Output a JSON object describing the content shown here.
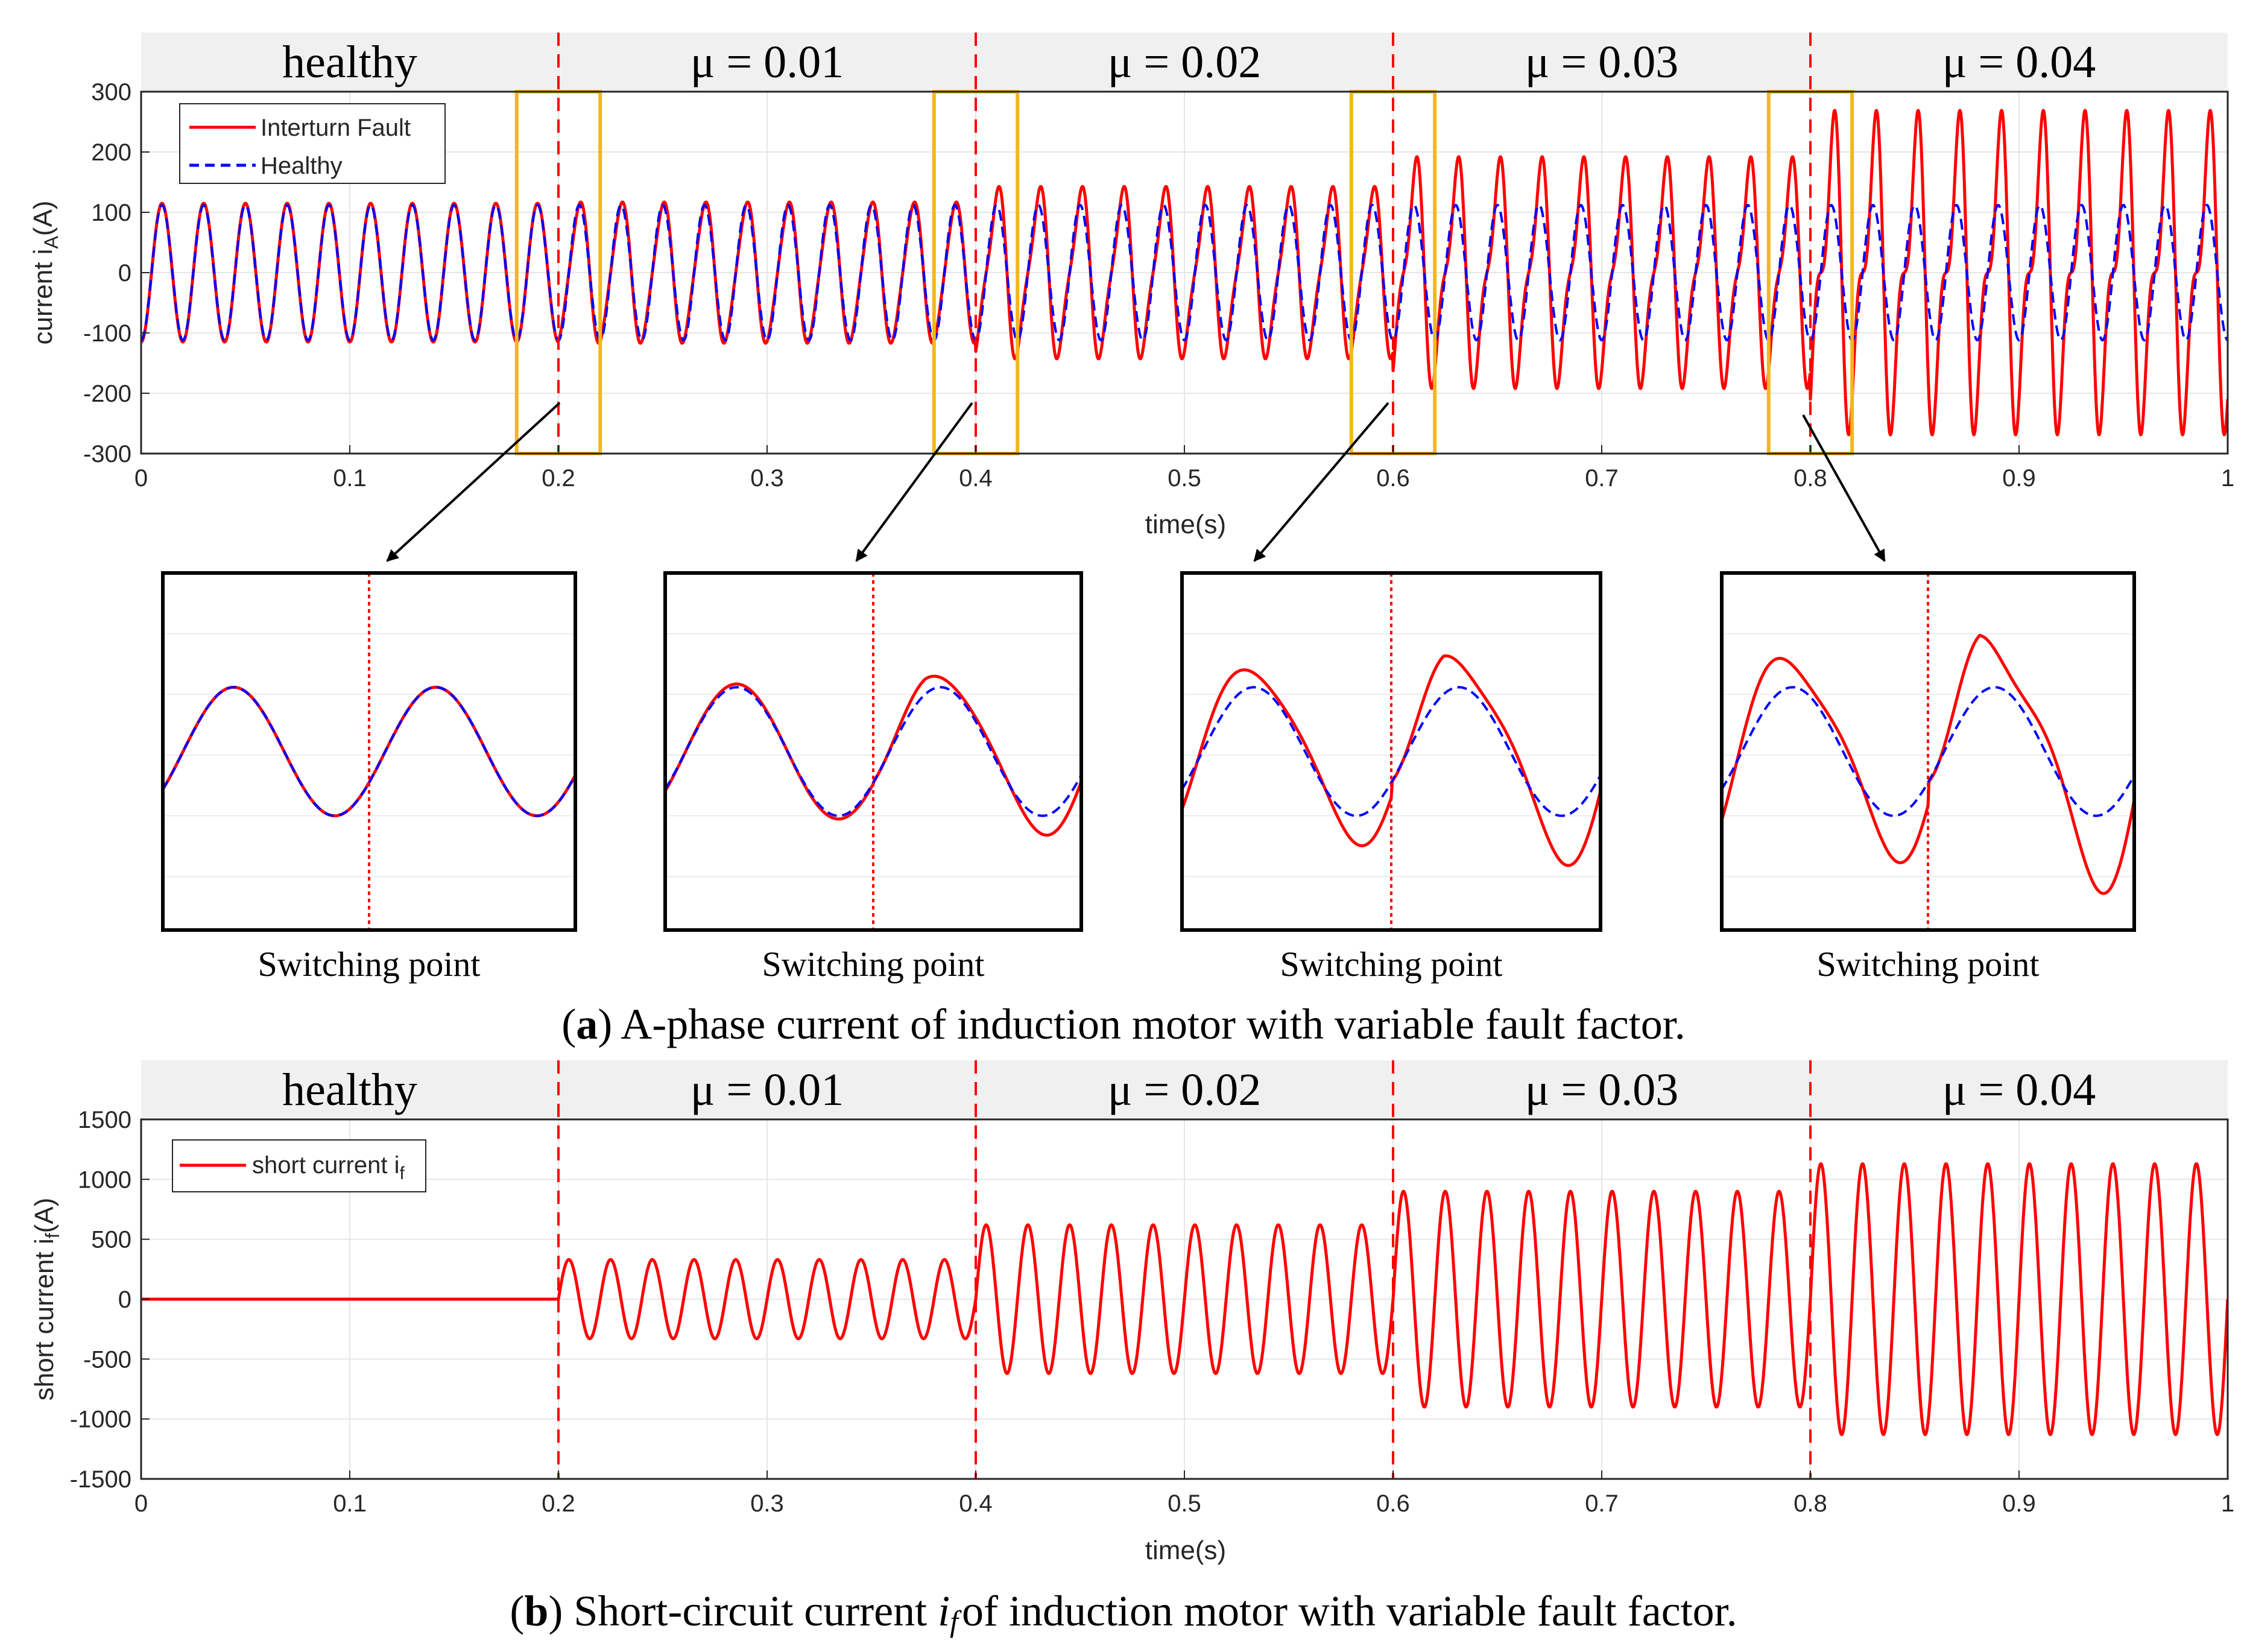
{
  "chart_data": [
    {
      "id": "a",
      "type": "line",
      "xlabel": "time(s)",
      "ylabel": "current i",
      "ylabel_sub": "A",
      "ylabel_unit": "(A)",
      "xlim": [
        0,
        1
      ],
      "ylim": [
        -300,
        300
      ],
      "xticks": [
        0,
        0.1,
        0.2,
        0.3,
        0.4,
        0.5,
        0.6,
        0.7,
        0.8,
        0.9,
        1
      ],
      "yticks": [
        -300,
        -200,
        -100,
        0,
        100,
        200,
        300
      ],
      "grid": true,
      "legend_position": "top-left",
      "fundamental_hz": 50,
      "switch_times": [
        0.2,
        0.4,
        0.6,
        0.8
      ],
      "segments": [
        "healthy",
        "μ = 0.01",
        "μ = 0.02",
        "μ = 0.03",
        "μ = 0.04"
      ],
      "series": [
        {
          "name": "Interturn Fault",
          "color": "#ff0000",
          "style": "solid",
          "amplitude_by_segment": [
            115,
            118,
            140,
            180,
            240
          ]
        },
        {
          "name": "Healthy",
          "color": "#0000ff",
          "style": "dashed",
          "amplitude_by_segment": [
            112,
            112,
            112,
            112,
            112
          ]
        }
      ],
      "zoom_windows": [
        [
          0.18,
          0.22
        ],
        [
          0.38,
          0.42
        ],
        [
          0.58,
          0.62
        ],
        [
          0.78,
          0.82
        ]
      ],
      "caption_letter": "a",
      "caption_text": ") A-phase current of induction motor with variable fault factor."
    },
    {
      "id": "b",
      "type": "line",
      "xlabel": "time(s)",
      "ylabel": "short current i",
      "ylabel_sub": "f",
      "ylabel_unit": "(A)",
      "xlim": [
        0,
        1
      ],
      "ylim": [
        -1500,
        1500
      ],
      "xticks": [
        0,
        0.1,
        0.2,
        0.3,
        0.4,
        0.5,
        0.6,
        0.7,
        0.8,
        0.9,
        1
      ],
      "yticks": [
        -1500,
        -1000,
        -500,
        0,
        500,
        1000,
        1500
      ],
      "grid": true,
      "legend_position": "top-left",
      "fundamental_hz": 50,
      "switch_times": [
        0.2,
        0.4,
        0.6,
        0.8
      ],
      "segments": [
        "healthy",
        "μ = 0.01",
        "μ = 0.02",
        "μ = 0.03",
        "μ = 0.04"
      ],
      "series": [
        {
          "name": "short current i",
          "name_sub": "f",
          "color": "#ff0000",
          "style": "solid",
          "amplitude_by_segment": [
            0,
            330,
            620,
            900,
            1130
          ]
        }
      ],
      "caption_letter": "b",
      "caption_pre": ") Short-circuit current ",
      "caption_var": "i",
      "caption_var_sub": "f",
      "caption_post": "of induction motor with variable fault factor."
    }
  ],
  "zoom_panels": {
    "label": "Switching point",
    "fault_ratio": [
      1.0,
      1.22,
      1.55,
      1.85
    ]
  }
}
